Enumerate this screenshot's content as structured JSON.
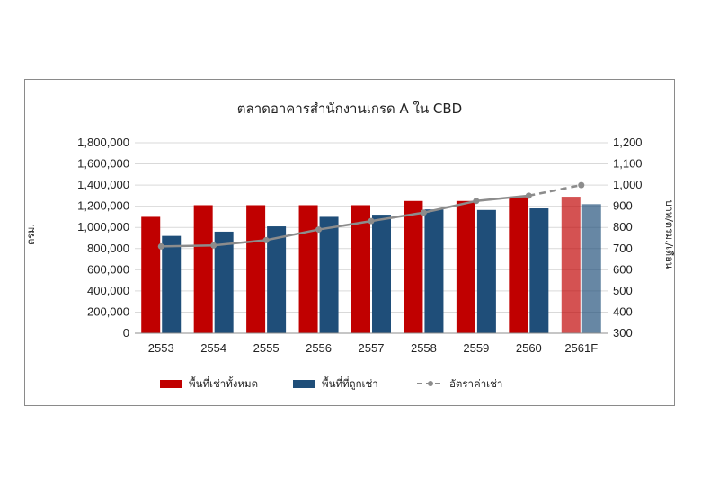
{
  "chart_data": {
    "type": "bar",
    "title": "ตลาดอาคารสำนักงานเกรด A ใน CBD",
    "categories": [
      "2553",
      "2554",
      "2555",
      "2556",
      "2557",
      "2558",
      "2559",
      "2560",
      "2561F"
    ],
    "ylabel": "ตรม.",
    "y2label": "บาท/ตรม./เดือน",
    "ylim": [
      0,
      1800000
    ],
    "y2lim": [
      300,
      1200
    ],
    "yticks": [
      "0",
      "200,000",
      "400,000",
      "600,000",
      "800,000",
      "1,000,000",
      "1,200,000",
      "1,400,000",
      "1,600,000",
      "1,800,000"
    ],
    "y2ticks": [
      "300",
      "400",
      "500",
      "600",
      "700",
      "800",
      "900",
      "1,000",
      "1,100",
      "1,200"
    ],
    "grid": true,
    "legend_position": "bottom",
    "forecast_category": "2561F",
    "series": [
      {
        "name": "พื้นที่เช่าทั้งหมด",
        "type": "bar",
        "axis": "left",
        "color": "#c00000",
        "values": [
          1100000,
          1210000,
          1210000,
          1210000,
          1210000,
          1250000,
          1250000,
          1285000,
          1290000
        ]
      },
      {
        "name": "พื้นที่ที่ถูกเช่า",
        "type": "bar",
        "axis": "left",
        "color": "#1f4e79",
        "values": [
          920000,
          960000,
          1010000,
          1100000,
          1120000,
          1170000,
          1165000,
          1180000,
          1220000
        ]
      },
      {
        "name": "อัตราค่าเช่า",
        "type": "line",
        "axis": "right",
        "color": "#8c8c8c",
        "values": [
          710,
          715,
          740,
          790,
          830,
          870,
          925,
          950,
          1000
        ]
      }
    ]
  }
}
